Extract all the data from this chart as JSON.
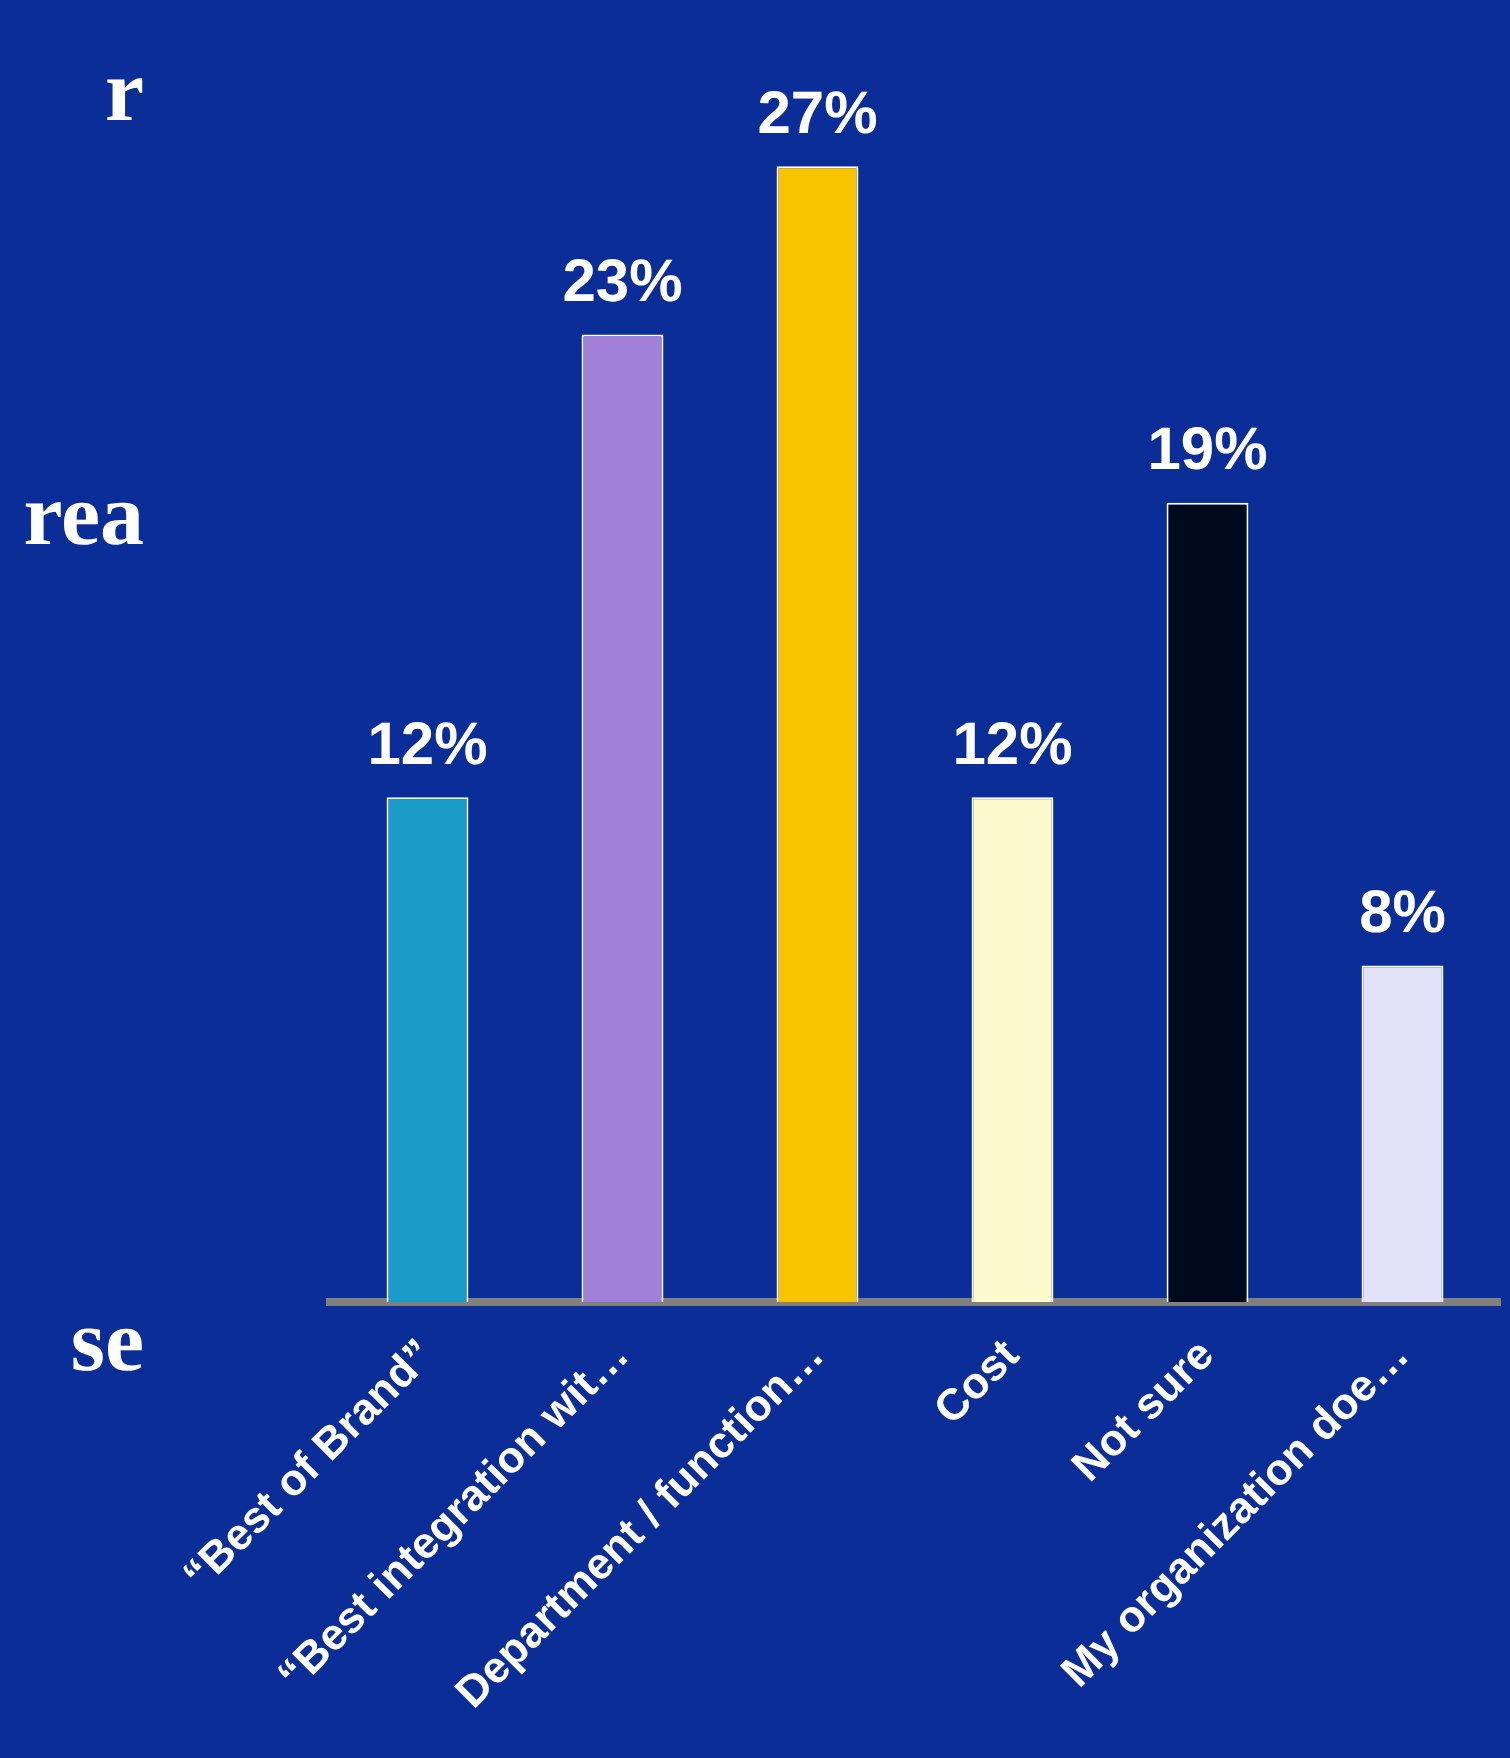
{
  "chart_data": {
    "type": "bar",
    "categories": [
      "“Best of Brand”",
      "“Best integration wit…",
      "Department / function…",
      "Cost",
      "Not sure",
      "My organization doe…"
    ],
    "values": [
      12,
      23,
      27,
      12,
      19,
      8
    ],
    "colors": [
      "#1a9cc8",
      "#a080d8",
      "#f8c400",
      "#fafacc",
      "#000a1c",
      "#e2e2f8"
    ],
    "data_labels": true,
    "value_labels": [
      "12%",
      "23%",
      "27%",
      "12%",
      "19%",
      "8%"
    ],
    "grid": false,
    "legend": false,
    "annotations": [
      "r",
      "rea",
      "se"
    ]
  }
}
